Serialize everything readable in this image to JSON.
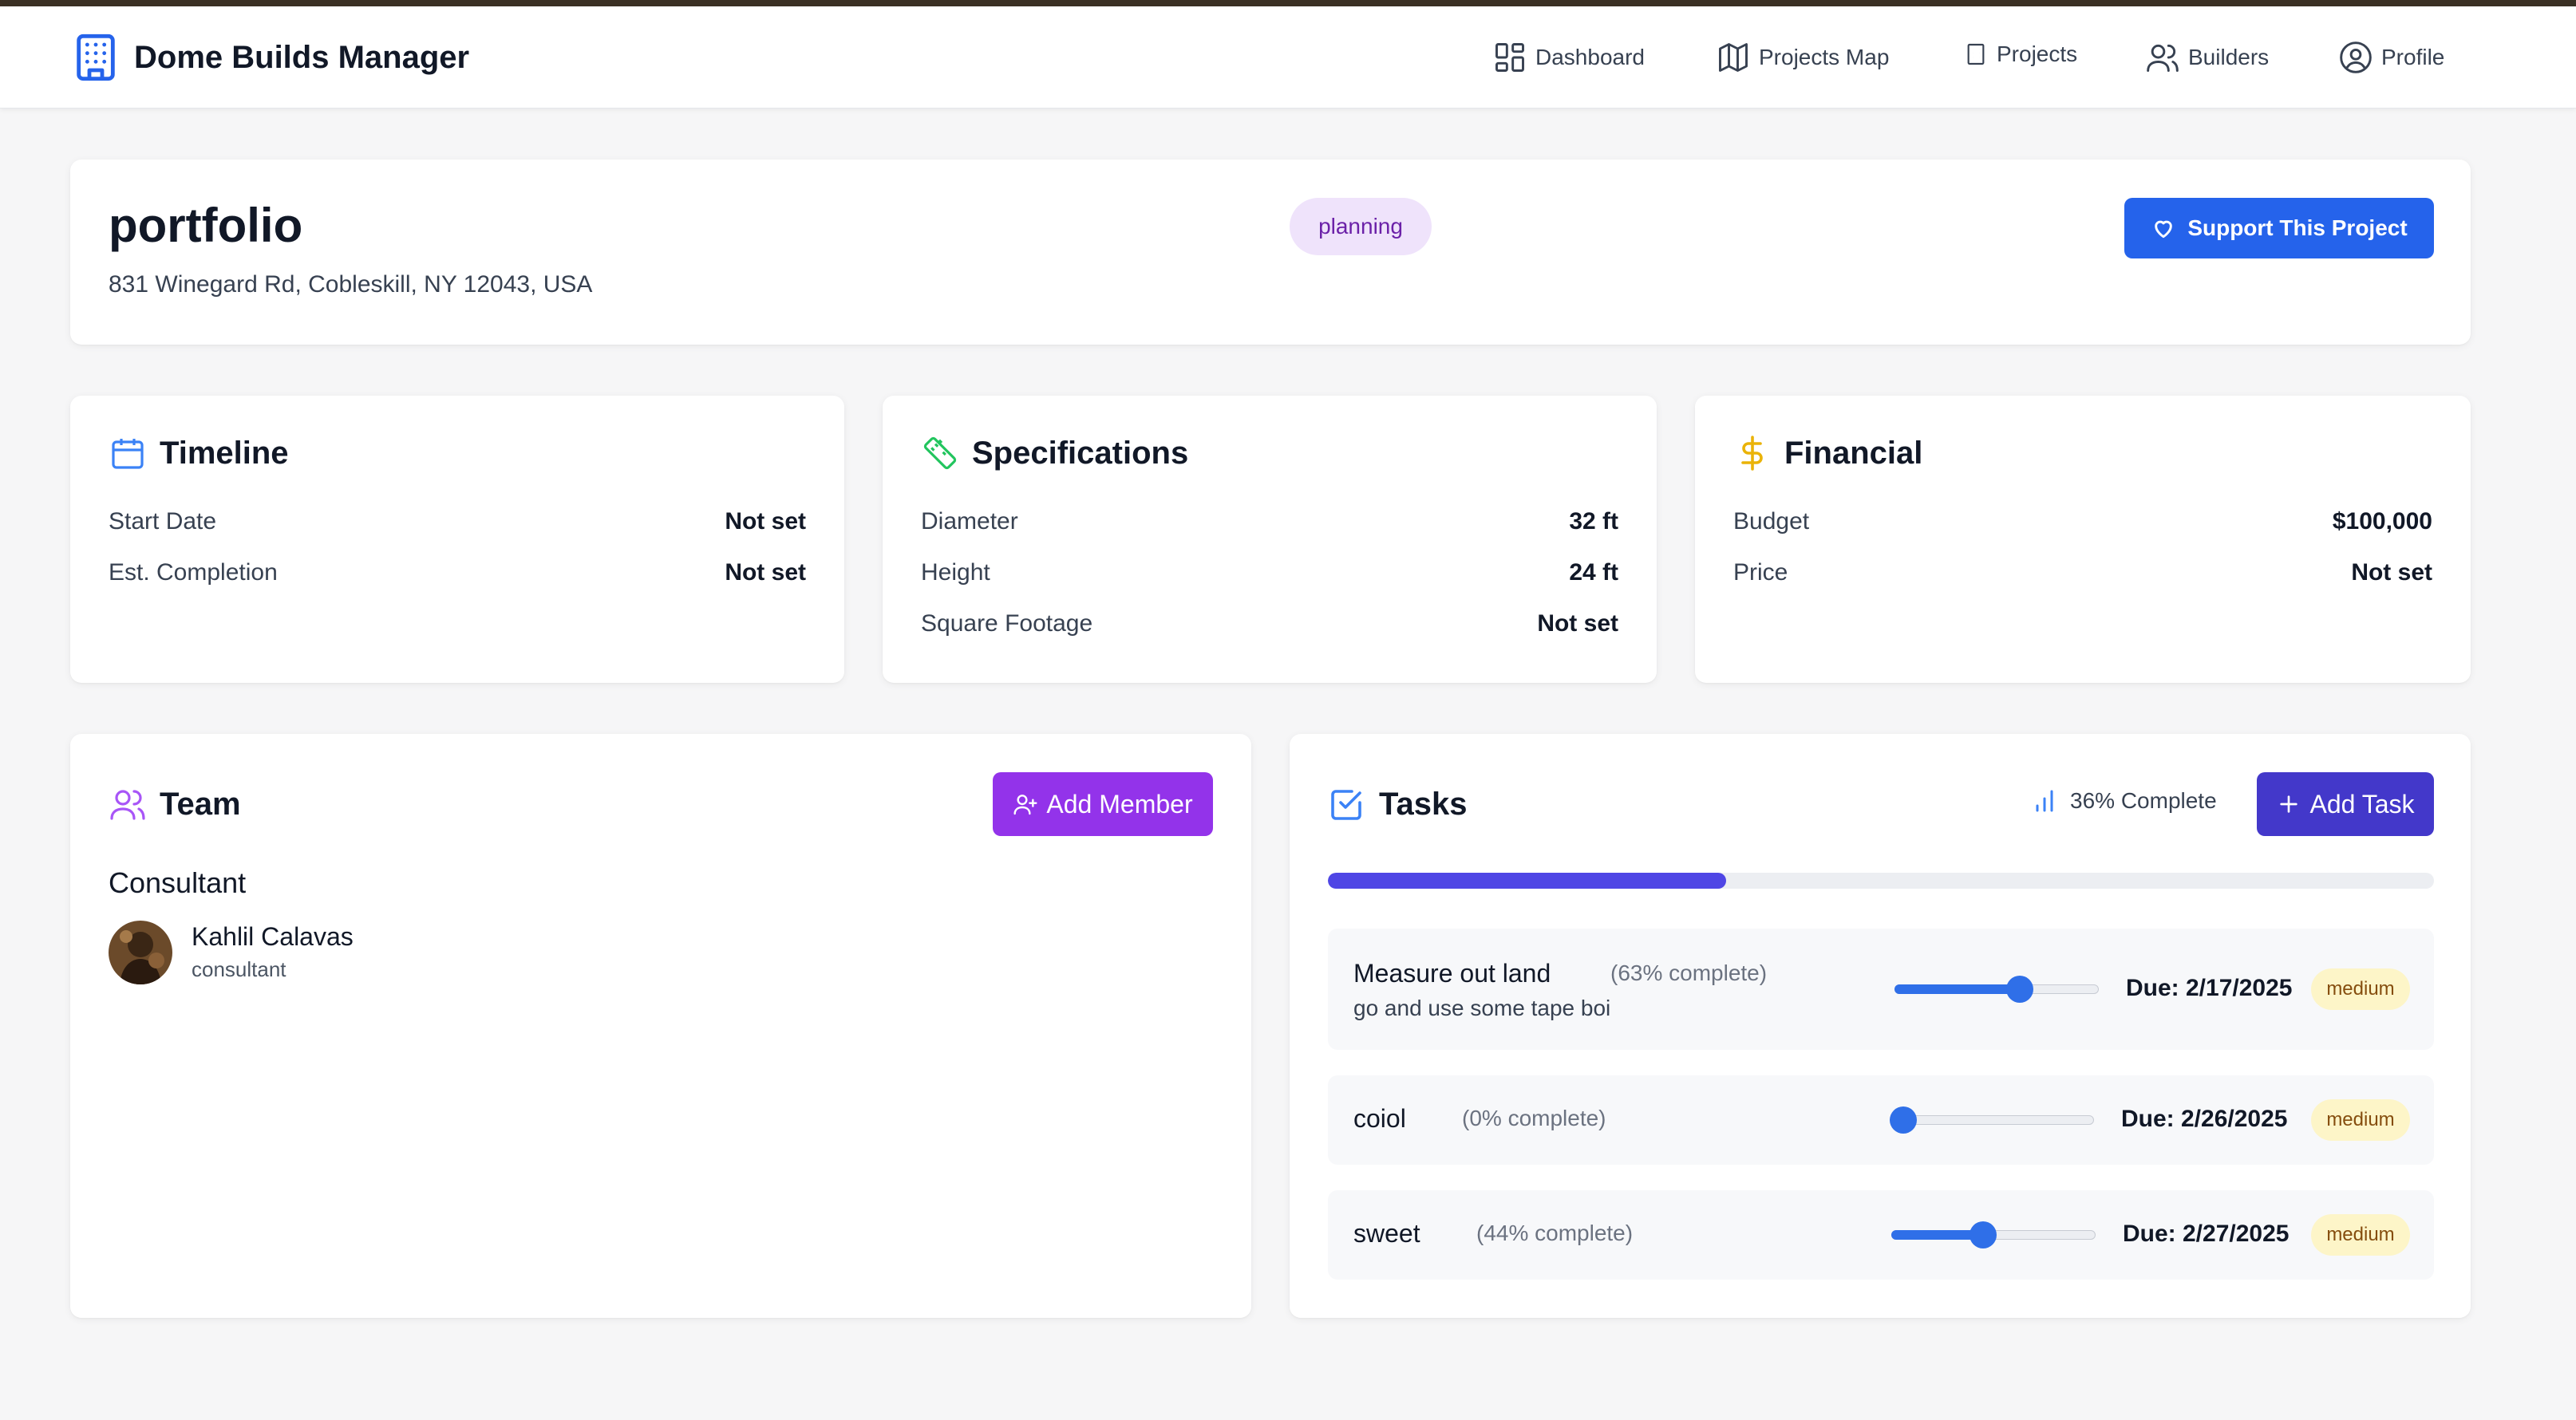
{
  "app": {
    "title": "Dome Builds Manager"
  },
  "nav": {
    "dashboard": "Dashboard",
    "projects_map": "Projects Map",
    "projects": "Projects",
    "builders": "Builders",
    "profile": "Profile"
  },
  "project": {
    "title": "portfolio",
    "address": "831 Winegard Rd, Cobleskill, NY 12043, USA",
    "status": "planning",
    "support_label": "Support This Project"
  },
  "timeline": {
    "title": "Timeline",
    "rows": [
      {
        "label": "Start Date",
        "value": "Not set"
      },
      {
        "label": "Est. Completion",
        "value": "Not set"
      }
    ]
  },
  "specifications": {
    "title": "Specifications",
    "rows": [
      {
        "label": "Diameter",
        "value": "32 ft"
      },
      {
        "label": "Height",
        "value": "24 ft"
      },
      {
        "label": "Square Footage",
        "value": "Not set"
      }
    ]
  },
  "financial": {
    "title": "Financial",
    "rows": [
      {
        "label": "Budget",
        "value": "$100,000"
      },
      {
        "label": "Price",
        "value": "Not set"
      }
    ]
  },
  "team": {
    "title": "Team",
    "add_label": "Add Member",
    "role_heading": "Consultant",
    "member": {
      "name": "Kahlil Calavas",
      "role": "consultant"
    }
  },
  "tasks": {
    "title": "Tasks",
    "progress_label": "36% Complete",
    "progress": 0.36,
    "add_label": "Add Task",
    "items": [
      {
        "title": "Measure out land",
        "percent_label": "(63% complete)",
        "description": "go and use some tape boi",
        "progress": 0.63,
        "due": "Due: 2/17/2025",
        "priority": "medium"
      },
      {
        "title": "coiol",
        "percent_label": "(0% complete)",
        "description": "",
        "progress": 0.0,
        "due": "Due: 2/26/2025",
        "priority": "medium"
      },
      {
        "title": "sweet",
        "percent_label": "(44% complete)",
        "description": "",
        "progress": 0.44,
        "due": "Due: 2/27/2025",
        "priority": "medium"
      }
    ]
  },
  "colors": {
    "primary_blue": "#2563eb",
    "purple": "#9333ea",
    "indigo": "#4338ca",
    "status_badge_bg": "#efe3fb",
    "priority_bg": "#fdf5c8"
  }
}
